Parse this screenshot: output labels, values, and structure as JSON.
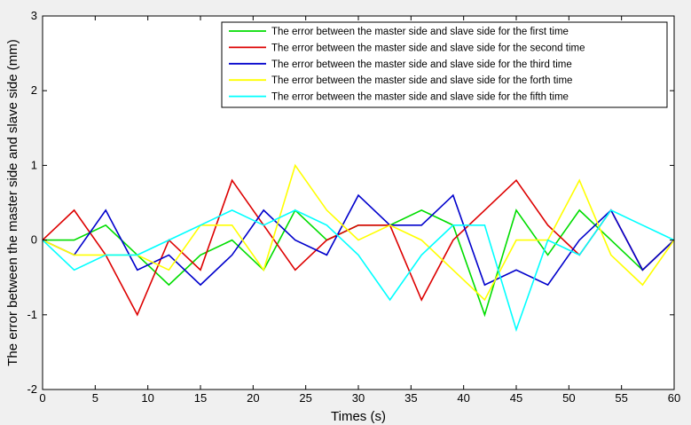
{
  "chart_data": {
    "type": "line",
    "title": "",
    "xlabel": "Times (s)",
    "ylabel": "The error between the master side and slave side (mm)",
    "xlim": [
      0,
      60
    ],
    "ylim": [
      -2,
      3
    ],
    "xticks": [
      0,
      5,
      10,
      15,
      20,
      25,
      30,
      35,
      40,
      45,
      50,
      55,
      60
    ],
    "yticks": [
      -2,
      -1,
      0,
      1,
      2,
      3
    ],
    "grid": false,
    "legend_position": "top-right",
    "x": [
      0,
      3,
      6,
      9,
      12,
      15,
      18,
      21,
      24,
      27,
      30,
      33,
      36,
      39,
      42,
      45,
      48,
      51,
      54,
      57,
      60
    ],
    "series": [
      {
        "name": "The error between the master side and slave side for the first time",
        "color": "#00dd00",
        "values": [
          0,
          0,
          0.2,
          -0.2,
          -0.6,
          -0.2,
          0,
          -0.4,
          0.4,
          0,
          0.2,
          0.2,
          0.4,
          0.2,
          -1.0,
          0.4,
          -0.2,
          0.4,
          0,
          -0.4,
          0
        ]
      },
      {
        "name": "The error between the master side and slave side for the second time",
        "color": "#dd0000",
        "values": [
          0,
          0.4,
          -0.2,
          -1.0,
          0,
          -0.4,
          0.8,
          0.2,
          -0.4,
          0,
          0.2,
          0.2,
          -0.8,
          0,
          0.4,
          0.8,
          0.2,
          -0.2,
          0.4,
          -0.4,
          0
        ]
      },
      {
        "name": "The error between the master side and slave side for the third time",
        "color": "#0000cc",
        "values": [
          0,
          -0.2,
          0.4,
          -0.4,
          -0.2,
          -0.6,
          -0.2,
          0.4,
          0,
          -0.2,
          0.6,
          0.2,
          0.2,
          0.6,
          -0.6,
          -0.4,
          -0.6,
          0,
          0.4,
          -0.4,
          0
        ]
      },
      {
        "name": "The error between the master side and slave side for the forth time",
        "color": "#ffff00",
        "values": [
          0,
          -0.2,
          -0.2,
          -0.2,
          -0.4,
          0.2,
          0.2,
          -0.4,
          1.0,
          0.4,
          0,
          0.2,
          0,
          -0.4,
          -0.8,
          0,
          0,
          0.8,
          -0.2,
          -0.6,
          0
        ]
      },
      {
        "name": "The error between the master side and slave side for the fifth time",
        "color": "#00ffff",
        "values": [
          0,
          -0.4,
          -0.2,
          -0.2,
          0,
          0.2,
          0.4,
          0.2,
          0.4,
          0.2,
          -0.2,
          -0.8,
          -0.2,
          0.2,
          0.2,
          -1.2,
          0,
          -0.2,
          0.4,
          0.2,
          0
        ]
      }
    ]
  }
}
